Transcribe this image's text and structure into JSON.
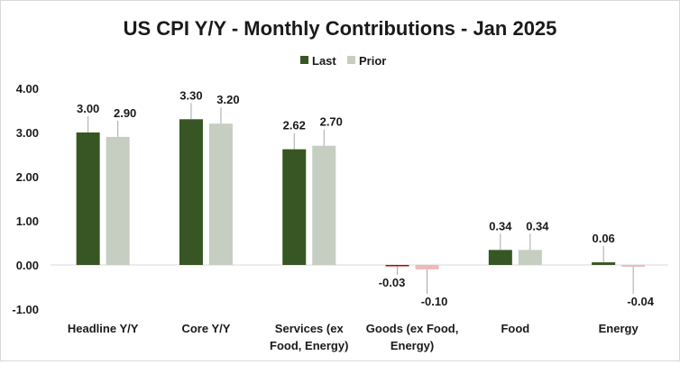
{
  "chart_data": {
    "type": "bar",
    "title": "US CPI Y/Y - Monthly Contributions - Jan 2025",
    "categories": [
      [
        "Headline Y/Y"
      ],
      [
        "Core Y/Y"
      ],
      [
        "Services (ex",
        "Food, Energy)"
      ],
      [
        "Goods (ex Food,",
        "Energy)"
      ],
      [
        "Food"
      ],
      [
        "Energy"
      ]
    ],
    "series": [
      {
        "name": "Last",
        "values": [
          3.0,
          3.3,
          2.62,
          -0.03,
          0.34,
          0.06
        ],
        "color": "#375623",
        "negative_color": "#c00000"
      },
      {
        "name": "Prior",
        "values": [
          2.9,
          3.2,
          2.7,
          -0.1,
          0.34,
          -0.04
        ],
        "color": "#c5cec0",
        "negative_color": "#f2b8b8"
      }
    ],
    "ylim": [
      -1,
      4
    ],
    "yticks": [
      "4.00",
      "3.00",
      "2.00",
      "1.00",
      "0.00",
      "-1.00"
    ],
    "grid": false,
    "legend": "top-center",
    "xlabel": "",
    "ylabel": ""
  }
}
